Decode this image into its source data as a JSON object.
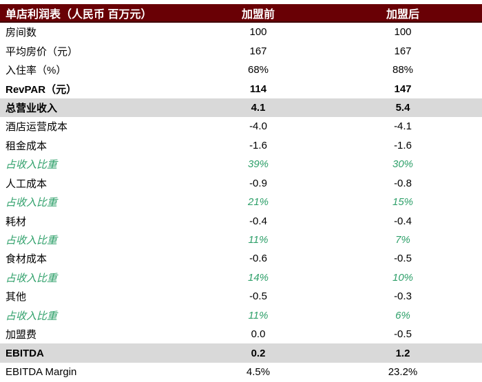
{
  "colors": {
    "header_bg": "#690005",
    "header_text": "#FFFFFF",
    "total_row_bg": "#D9D9D9",
    "pct_row_text": "#2FA06A",
    "body_text": "#000000"
  },
  "chart_data": {
    "type": "table",
    "title": "单店利润表（人民币 百万元）",
    "columns": [
      "加盟前",
      "加盟后"
    ],
    "rows": [
      {
        "label": "房间数",
        "before": "100",
        "after": "100",
        "style": "normal"
      },
      {
        "label": "平均房价（元）",
        "before": "167",
        "after": "167",
        "style": "normal"
      },
      {
        "label": "入住率（%）",
        "before": "68%",
        "after": "88%",
        "style": "normal"
      },
      {
        "label": "RevPAR（元）",
        "before": "114",
        "after": "147",
        "style": "bold"
      },
      {
        "label": "总营业收入",
        "before": "4.1",
        "after": "5.4",
        "style": "total"
      },
      {
        "label": "酒店运营成本",
        "before": "-4.0",
        "after": "-4.1",
        "style": "normal"
      },
      {
        "label": "租金成本",
        "before": "-1.6",
        "after": "-1.6",
        "style": "normal"
      },
      {
        "label": "占收入比重",
        "before": "39%",
        "after": "30%",
        "style": "pct"
      },
      {
        "label": "人工成本",
        "before": "-0.9",
        "after": "-0.8",
        "style": "normal"
      },
      {
        "label": "占收入比重",
        "before": "21%",
        "after": "15%",
        "style": "pct"
      },
      {
        "label": "耗材",
        "before": "-0.4",
        "after": "-0.4",
        "style": "normal"
      },
      {
        "label": "占收入比重",
        "before": "11%",
        "after": "7%",
        "style": "pct"
      },
      {
        "label": "食材成本",
        "before": "-0.6",
        "after": "-0.5",
        "style": "normal"
      },
      {
        "label": "占收入比重",
        "before": "14%",
        "after": "10%",
        "style": "pct"
      },
      {
        "label": "其他",
        "before": "-0.5",
        "after": "-0.3",
        "style": "normal"
      },
      {
        "label": "占收入比重",
        "before": "11%",
        "after": "6%",
        "style": "pct"
      },
      {
        "label": "加盟费",
        "before": "0.0",
        "after": "-0.5",
        "style": "normal"
      },
      {
        "label": "EBITDA",
        "before": "0.2",
        "after": "1.2",
        "style": "total"
      },
      {
        "label": "EBITDA Margin",
        "before": "4.5%",
        "after": "23.2%",
        "style": "normal"
      }
    ]
  }
}
